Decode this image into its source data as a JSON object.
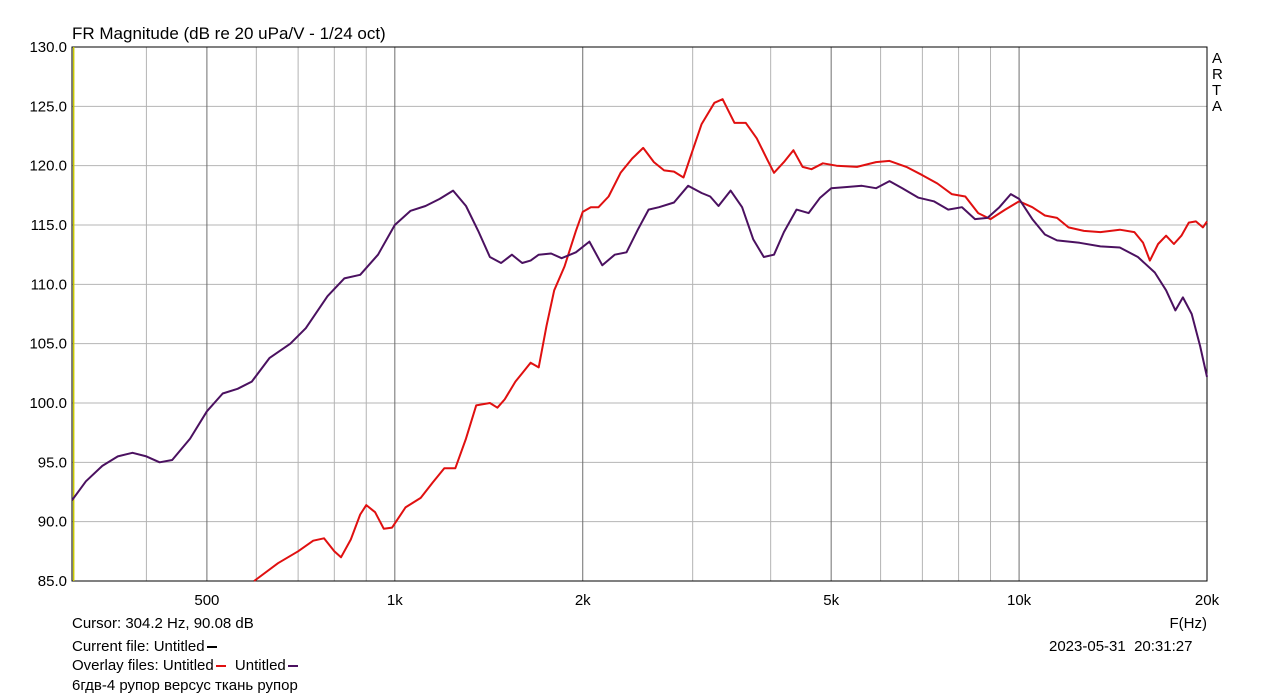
{
  "chart_data": {
    "type": "line",
    "title": "FR Magnitude (dB re 20 uPa/V - 1/24 oct)",
    "xlabel": "F(Hz)",
    "ylabel": "",
    "x_scale": "log",
    "xlim": [
      304,
      20000
    ],
    "ylim": [
      85,
      130
    ],
    "y_ticks": [
      "130.0",
      "125.0",
      "120.0",
      "115.0",
      "110.0",
      "105.0",
      "100.0",
      "95.0",
      "90.0",
      "85.0"
    ],
    "x_ticks": [
      {
        "value": 500,
        "label": "500"
      },
      {
        "value": 1000,
        "label": "1k"
      },
      {
        "value": 2000,
        "label": "2k"
      },
      {
        "value": 5000,
        "label": "5k"
      },
      {
        "value": 10000,
        "label": "10k"
      },
      {
        "value": 20000,
        "label": "20k"
      }
    ],
    "grid": true,
    "watermark": "ARTA",
    "cursor_x": 304.2,
    "series": [
      {
        "color": "#e01010",
        "points": [
          [
            595,
            85
          ],
          [
            650,
            86.5
          ],
          [
            700,
            87.5
          ],
          [
            740,
            88.4
          ],
          [
            770,
            88.6
          ],
          [
            800,
            87.5
          ],
          [
            820,
            87
          ],
          [
            850,
            88.5
          ],
          [
            880,
            90.6
          ],
          [
            900,
            91.4
          ],
          [
            930,
            90.8
          ],
          [
            960,
            89.4
          ],
          [
            990,
            89.5
          ],
          [
            1040,
            91.2
          ],
          [
            1100,
            92
          ],
          [
            1150,
            93.3
          ],
          [
            1200,
            94.5
          ],
          [
            1250,
            94.5
          ],
          [
            1300,
            97
          ],
          [
            1350,
            99.8
          ],
          [
            1420,
            100
          ],
          [
            1460,
            99.6
          ],
          [
            1500,
            100.3
          ],
          [
            1560,
            101.8
          ],
          [
            1600,
            102.5
          ],
          [
            1650,
            103.4
          ],
          [
            1700,
            103
          ],
          [
            1750,
            106.5
          ],
          [
            1800,
            109.5
          ],
          [
            1870,
            111.5
          ],
          [
            1950,
            114.5
          ],
          [
            2000,
            116.1
          ],
          [
            2060,
            116.5
          ],
          [
            2120,
            116.5
          ],
          [
            2200,
            117.4
          ],
          [
            2300,
            119.4
          ],
          [
            2400,
            120.6
          ],
          [
            2500,
            121.5
          ],
          [
            2600,
            120.3
          ],
          [
            2700,
            119.6
          ],
          [
            2800,
            119.5
          ],
          [
            2900,
            119
          ],
          [
            3000,
            121.3
          ],
          [
            3100,
            123.5
          ],
          [
            3250,
            125.3
          ],
          [
            3350,
            125.6
          ],
          [
            3500,
            123.6
          ],
          [
            3650,
            123.6
          ],
          [
            3800,
            122.3
          ],
          [
            3950,
            120.5
          ],
          [
            4050,
            119.4
          ],
          [
            4200,
            120.3
          ],
          [
            4350,
            121.3
          ],
          [
            4500,
            119.9
          ],
          [
            4650,
            119.7
          ],
          [
            4850,
            120.2
          ],
          [
            5100,
            120
          ],
          [
            5500,
            119.9
          ],
          [
            5900,
            120.3
          ],
          [
            6200,
            120.4
          ],
          [
            6600,
            119.9
          ],
          [
            7000,
            119.2
          ],
          [
            7400,
            118.5
          ],
          [
            7800,
            117.6
          ],
          [
            8200,
            117.4
          ],
          [
            8600,
            116
          ],
          [
            9000,
            115.5
          ],
          [
            9500,
            116.3
          ],
          [
            10000,
            117
          ],
          [
            10500,
            116.5
          ],
          [
            11000,
            115.8
          ],
          [
            11500,
            115.6
          ],
          [
            12000,
            114.8
          ],
          [
            12700,
            114.5
          ],
          [
            13500,
            114.4
          ],
          [
            14500,
            114.6
          ],
          [
            15300,
            114.4
          ],
          [
            15800,
            113.5
          ],
          [
            16200,
            112
          ],
          [
            16700,
            113.4
          ],
          [
            17200,
            114.1
          ],
          [
            17700,
            113.4
          ],
          [
            18200,
            114.1
          ],
          [
            18700,
            115.2
          ],
          [
            19200,
            115.3
          ],
          [
            19700,
            114.8
          ],
          [
            20000,
            115.3
          ]
        ]
      },
      {
        "color": "#4b1160",
        "points": [
          [
            304,
            91.8
          ],
          [
            320,
            93.4
          ],
          [
            340,
            94.7
          ],
          [
            360,
            95.5
          ],
          [
            380,
            95.8
          ],
          [
            400,
            95.5
          ],
          [
            420,
            95
          ],
          [
            440,
            95.2
          ],
          [
            470,
            97
          ],
          [
            500,
            99.3
          ],
          [
            530,
            100.8
          ],
          [
            560,
            101.2
          ],
          [
            590,
            101.8
          ],
          [
            630,
            103.8
          ],
          [
            680,
            105
          ],
          [
            720,
            106.3
          ],
          [
            780,
            109
          ],
          [
            830,
            110.5
          ],
          [
            880,
            110.8
          ],
          [
            940,
            112.5
          ],
          [
            1000,
            115
          ],
          [
            1060,
            116.2
          ],
          [
            1120,
            116.6
          ],
          [
            1180,
            117.2
          ],
          [
            1240,
            117.9
          ],
          [
            1300,
            116.6
          ],
          [
            1360,
            114.5
          ],
          [
            1420,
            112.3
          ],
          [
            1480,
            111.8
          ],
          [
            1540,
            112.5
          ],
          [
            1600,
            111.8
          ],
          [
            1650,
            112
          ],
          [
            1700,
            112.5
          ],
          [
            1780,
            112.6
          ],
          [
            1850,
            112.2
          ],
          [
            1950,
            112.7
          ],
          [
            2050,
            113.6
          ],
          [
            2150,
            111.6
          ],
          [
            2250,
            112.5
          ],
          [
            2350,
            112.7
          ],
          [
            2450,
            114.6
          ],
          [
            2550,
            116.3
          ],
          [
            2650,
            116.5
          ],
          [
            2800,
            116.9
          ],
          [
            2950,
            118.3
          ],
          [
            3100,
            117.7
          ],
          [
            3200,
            117.4
          ],
          [
            3300,
            116.6
          ],
          [
            3450,
            117.9
          ],
          [
            3600,
            116.5
          ],
          [
            3750,
            113.8
          ],
          [
            3900,
            112.3
          ],
          [
            4050,
            112.5
          ],
          [
            4200,
            114.4
          ],
          [
            4400,
            116.3
          ],
          [
            4600,
            116
          ],
          [
            4800,
            117.3
          ],
          [
            5000,
            118.1
          ],
          [
            5300,
            118.2
          ],
          [
            5600,
            118.3
          ],
          [
            5900,
            118.1
          ],
          [
            6200,
            118.7
          ],
          [
            6500,
            118.1
          ],
          [
            6900,
            117.3
          ],
          [
            7300,
            117
          ],
          [
            7700,
            116.3
          ],
          [
            8100,
            116.5
          ],
          [
            8500,
            115.5
          ],
          [
            8900,
            115.6
          ],
          [
            9300,
            116.5
          ],
          [
            9700,
            117.6
          ],
          [
            10000,
            117.2
          ],
          [
            10500,
            115.5
          ],
          [
            11000,
            114.2
          ],
          [
            11500,
            113.7
          ],
          [
            12500,
            113.5
          ],
          [
            13500,
            113.2
          ],
          [
            14500,
            113.1
          ],
          [
            15500,
            112.3
          ],
          [
            16500,
            111
          ],
          [
            17200,
            109.5
          ],
          [
            17800,
            107.8
          ],
          [
            18300,
            108.9
          ],
          [
            18900,
            107.5
          ],
          [
            19500,
            104.8
          ],
          [
            20000,
            102.2
          ]
        ]
      }
    ]
  },
  "footer": {
    "cursor": "Cursor: 304.2 Hz, 90.08 dB",
    "current_file": "Current file: Untitled",
    "overlay_prefix": "Overlay files: Untitled",
    "overlay_second": "Untitled",
    "comment": "6гдв-4 рупор версус ткань рупор",
    "date": "2023-05-31",
    "time": "20:31:27",
    "current_color": "#000000",
    "overlay1_color": "#e01010",
    "overlay2_color": "#4b1160"
  }
}
